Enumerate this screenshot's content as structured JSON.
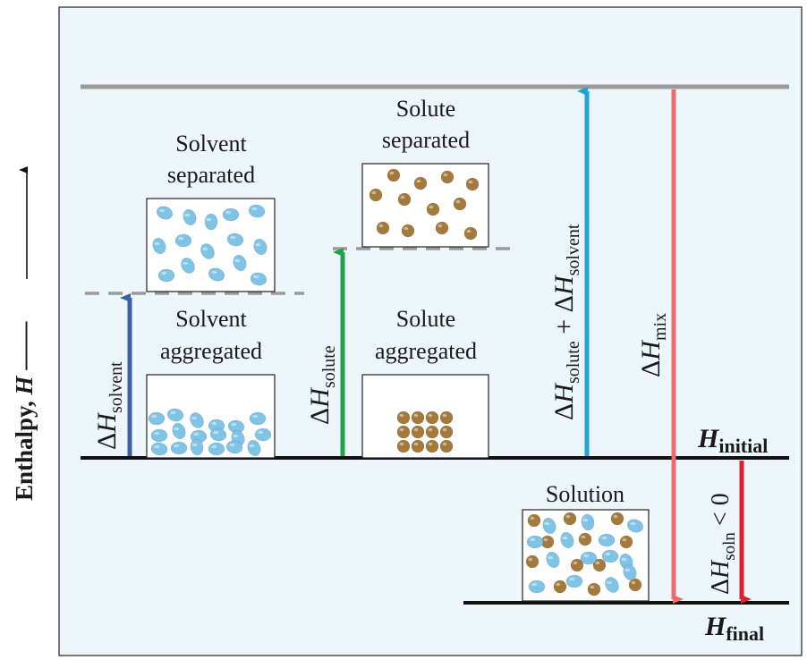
{
  "axis": {
    "label_main": "Enthalpy, ",
    "label_var": "H"
  },
  "boxes": {
    "solvent_separated": [
      "Solvent",
      "separated"
    ],
    "solvent_aggregated": [
      "Solvent",
      "aggregated"
    ],
    "solute_separated": [
      "Solute",
      "separated"
    ],
    "solute_aggregated": [
      "Solute",
      "aggregated"
    ],
    "solution": "Solution"
  },
  "arrows": {
    "dh_solvent": {
      "delta": "Δ",
      "var": "H",
      "sub": "solvent"
    },
    "dh_solute": {
      "delta": "Δ",
      "var": "H",
      "sub": "solute"
    },
    "dh_sum": {
      "delta1": "Δ",
      "var1": "H",
      "sub1": "solute",
      "plus": " + ",
      "delta2": "Δ",
      "var2": "H",
      "sub2": "solvent"
    },
    "dh_mix": {
      "delta": "Δ",
      "var": "H",
      "sub": "mix"
    },
    "dh_soln": {
      "delta": "Δ",
      "var": "H",
      "sub": "soln",
      "rel": " < 0"
    }
  },
  "levels": {
    "initial": {
      "var": "H",
      "sub": "initial"
    },
    "final": {
      "var": "H",
      "sub": "final"
    }
  },
  "colors": {
    "panel_bg": "#ecf6fb",
    "level_line": "#111111",
    "top_line": "#9a9a9a",
    "dashed_line": "#9a9a9a",
    "solvent_particle": "#7fc3e6",
    "solute_particle": "#a47a3c",
    "arrow_solvent": "#3c5fa8",
    "arrow_solute": "#22a34a",
    "arrow_sum": "#1fa3dc",
    "arrow_mix": "#ee6c6c",
    "arrow_soln": "#e0202a"
  }
}
